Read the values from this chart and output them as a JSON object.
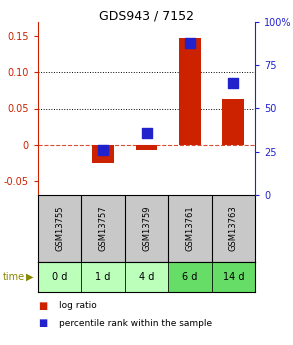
{
  "title": "GDS943 / 7152",
  "samples": [
    "GSM13755",
    "GSM13757",
    "GSM13759",
    "GSM13761",
    "GSM13763"
  ],
  "time_labels": [
    "0 d",
    "1 d",
    "4 d",
    "6 d",
    "14 d"
  ],
  "log_ratio": [
    0.0,
    -0.025,
    -0.008,
    0.148,
    0.063
  ],
  "percentile_rank": [
    null,
    26,
    36,
    88,
    65
  ],
  "ylim_left": [
    -0.07,
    0.17
  ],
  "ylim_right": [
    0,
    100
  ],
  "yticks_left": [
    -0.05,
    0.0,
    0.05,
    0.1,
    0.15
  ],
  "yticks_right": [
    0,
    25,
    50,
    75,
    100
  ],
  "ytick_labels_left": [
    "-0.05",
    "0",
    "0.05",
    "0.10",
    "0.15"
  ],
  "ytick_labels_right": [
    "0",
    "25",
    "50",
    "75",
    "100%"
  ],
  "hlines_dotted": [
    0.05,
    0.1
  ],
  "hline_dashed_val": 0.0,
  "bar_color": "#cc2200",
  "dot_color": "#2222cc",
  "bar_width": 0.5,
  "dot_size": 55,
  "plot_bg": "#ffffff",
  "sample_bg": "#c8c8c8",
  "time_bg_colors": [
    "#bbffbb",
    "#bbffbb",
    "#bbffbb",
    "#66dd66",
    "#66dd66"
  ],
  "time_arrow_color": "#888800",
  "left_tick_color": "#cc2200",
  "right_tick_color": "#2222cc",
  "legend_log_ratio_color": "#cc2200",
  "legend_percentile_color": "#2222cc",
  "title_fontsize": 9
}
